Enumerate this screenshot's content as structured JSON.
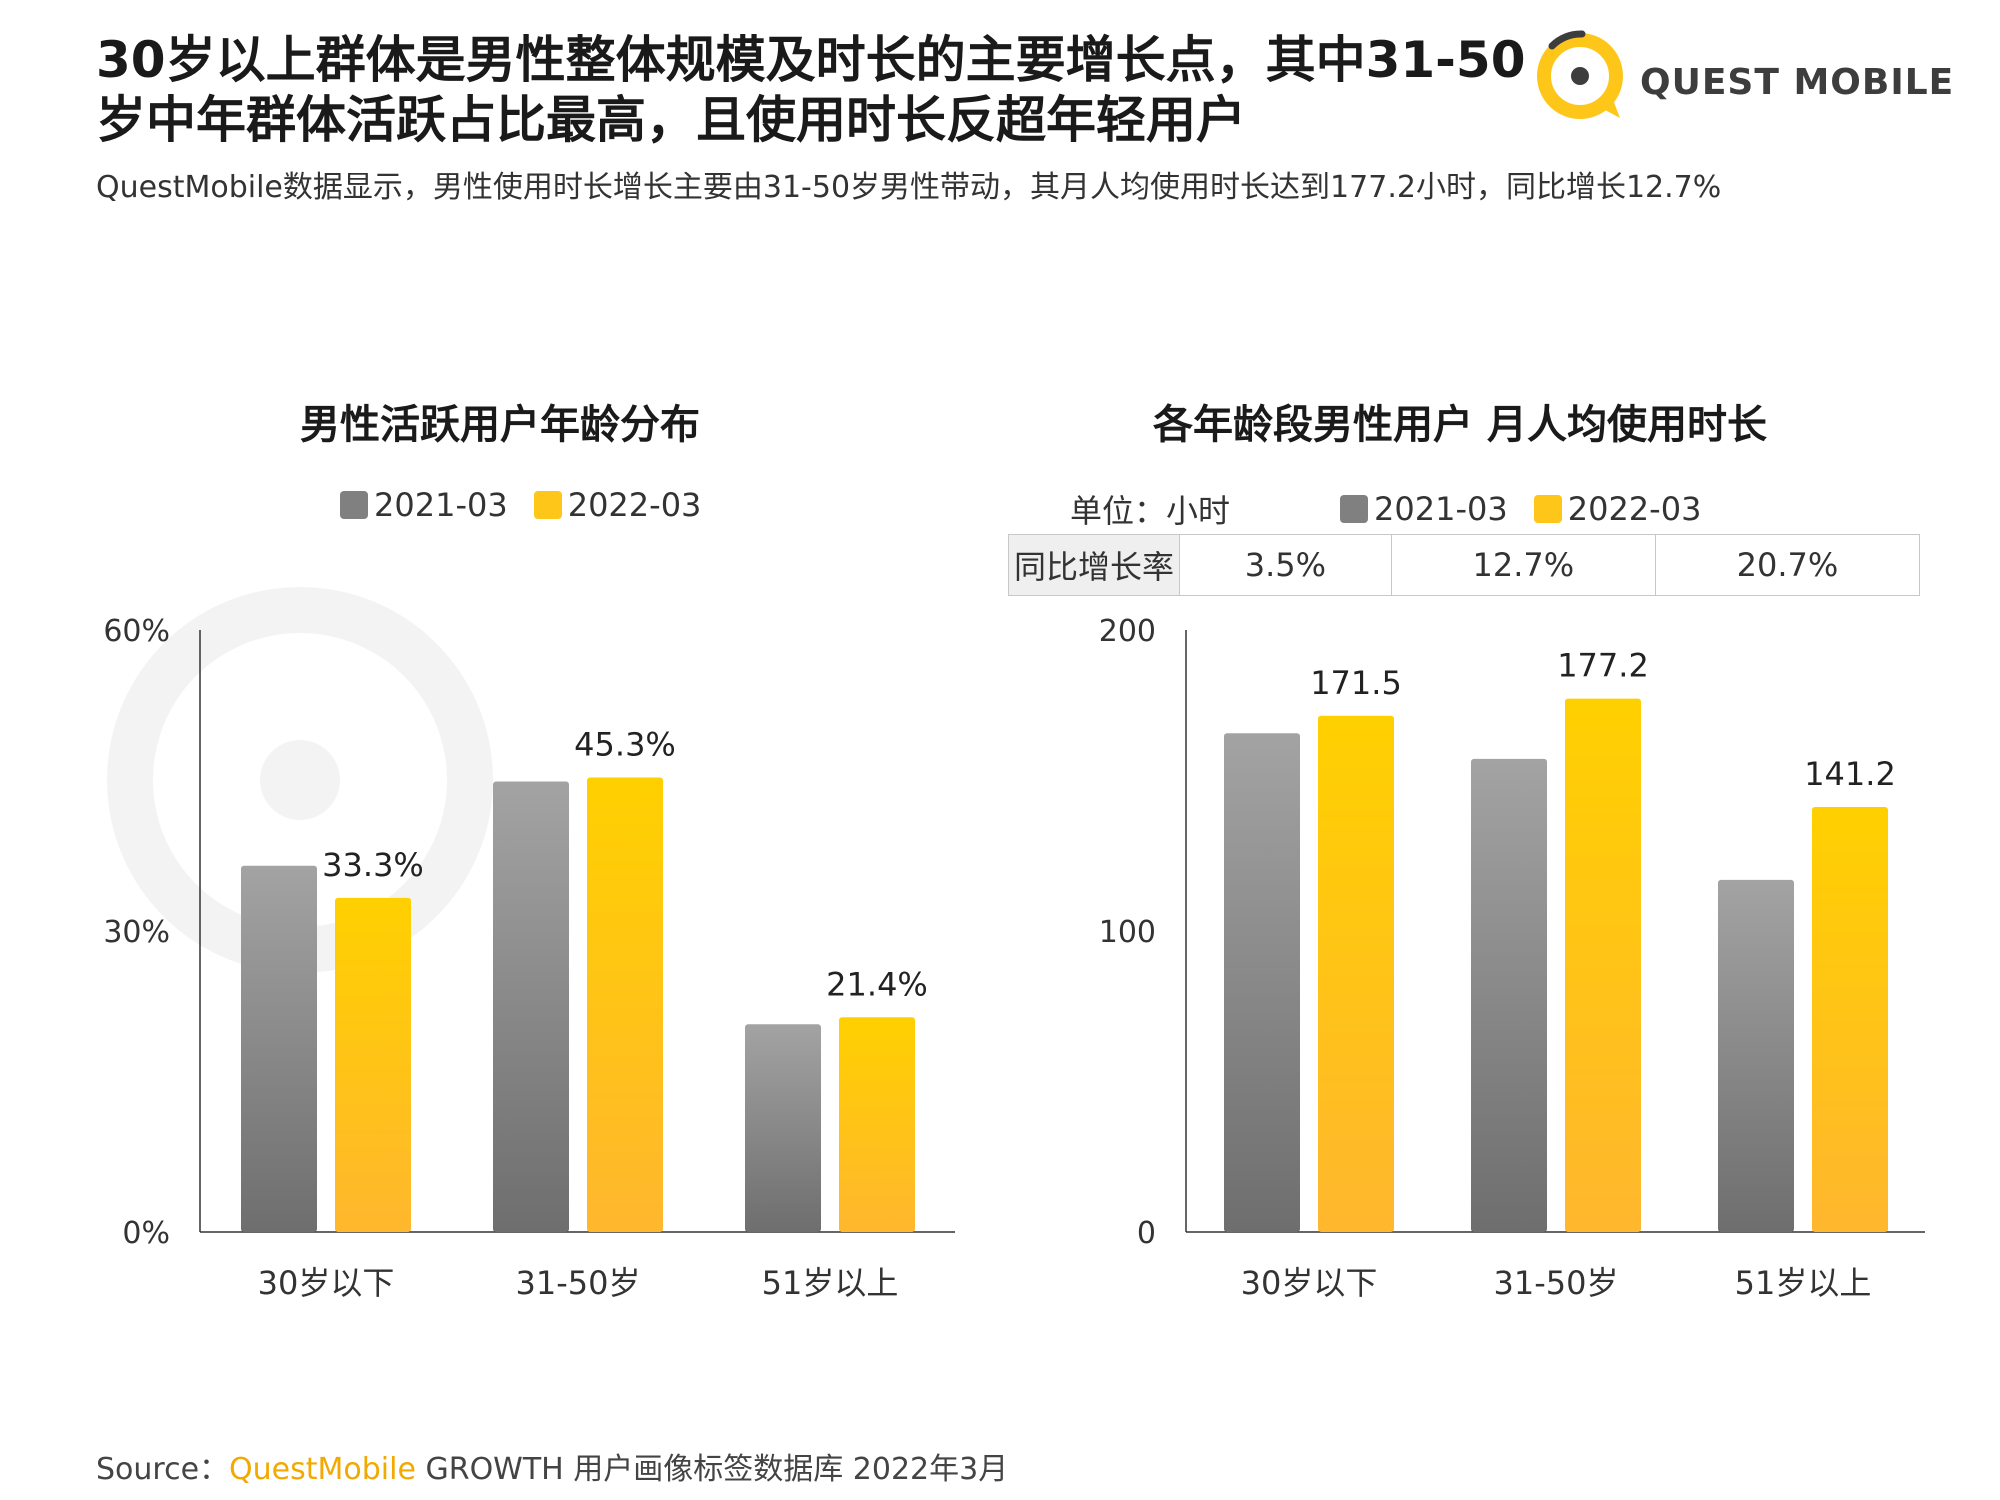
{
  "header": {
    "title_line1": "30岁以上群体是男性整体规模及时长的主要增长点，其中31-50",
    "title_line2": "岁中年群体活跃占比最高，且使用时长反超年轻用户",
    "subtitle": "QuestMobile数据显示，男性使用时长增长主要由31-50岁男性带动，其月人均使用时长达到177.2小时，同比增长12.7%",
    "logo_text": "QUEST MOBILE"
  },
  "colors": {
    "series_2021": "#8c8c8c",
    "series_2022": "#ffc61a",
    "accent": "#f2a900"
  },
  "left_chart": {
    "legend": [
      "2021-03",
      "2022-03"
    ]
  },
  "right_chart": {
    "unit_label": "单位：小时",
    "legend": [
      "2021-03",
      "2022-03"
    ],
    "yoy": {
      "label": "同比增长率",
      "values": [
        "3.5%",
        "12.7%",
        "20.7%"
      ]
    }
  },
  "chart_data": [
    {
      "type": "bar",
      "title": "男性活跃用户年龄分布",
      "categories": [
        "30岁以下",
        "31-50岁",
        "51岁以上"
      ],
      "series": [
        {
          "name": "2021-03",
          "values": [
            36.5,
            44.9,
            20.7
          ]
        },
        {
          "name": "2022-03",
          "values": [
            33.3,
            45.3,
            21.4
          ]
        }
      ],
      "data_labels": [
        "",
        "",
        "",
        "33.3%",
        "45.3%",
        "21.4%"
      ],
      "ylim": [
        0,
        60
      ],
      "yticks": [
        "0%",
        "30%",
        "60%"
      ],
      "ytick_values": [
        0,
        30,
        60
      ]
    },
    {
      "type": "bar",
      "title": "各年龄段男性用户 月人均使用时长",
      "categories": [
        "30岁以下",
        "31-50岁",
        "51岁以上"
      ],
      "series": [
        {
          "name": "2021-03",
          "values": [
            165.7,
            157.2,
            117.0
          ]
        },
        {
          "name": "2022-03",
          "values": [
            171.5,
            177.2,
            141.2
          ]
        }
      ],
      "data_labels": [
        "",
        "",
        "",
        "171.5",
        "177.2",
        "141.2"
      ],
      "ylim": [
        0,
        200
      ],
      "yticks": [
        "0",
        "100",
        "200"
      ],
      "ytick_values": [
        0,
        100,
        200
      ]
    }
  ],
  "footer": {
    "source_prefix": "Source：",
    "source_brand": "QuestMobile",
    "source_rest": " GROWTH 用户画像标签数据库 2022年3月"
  }
}
